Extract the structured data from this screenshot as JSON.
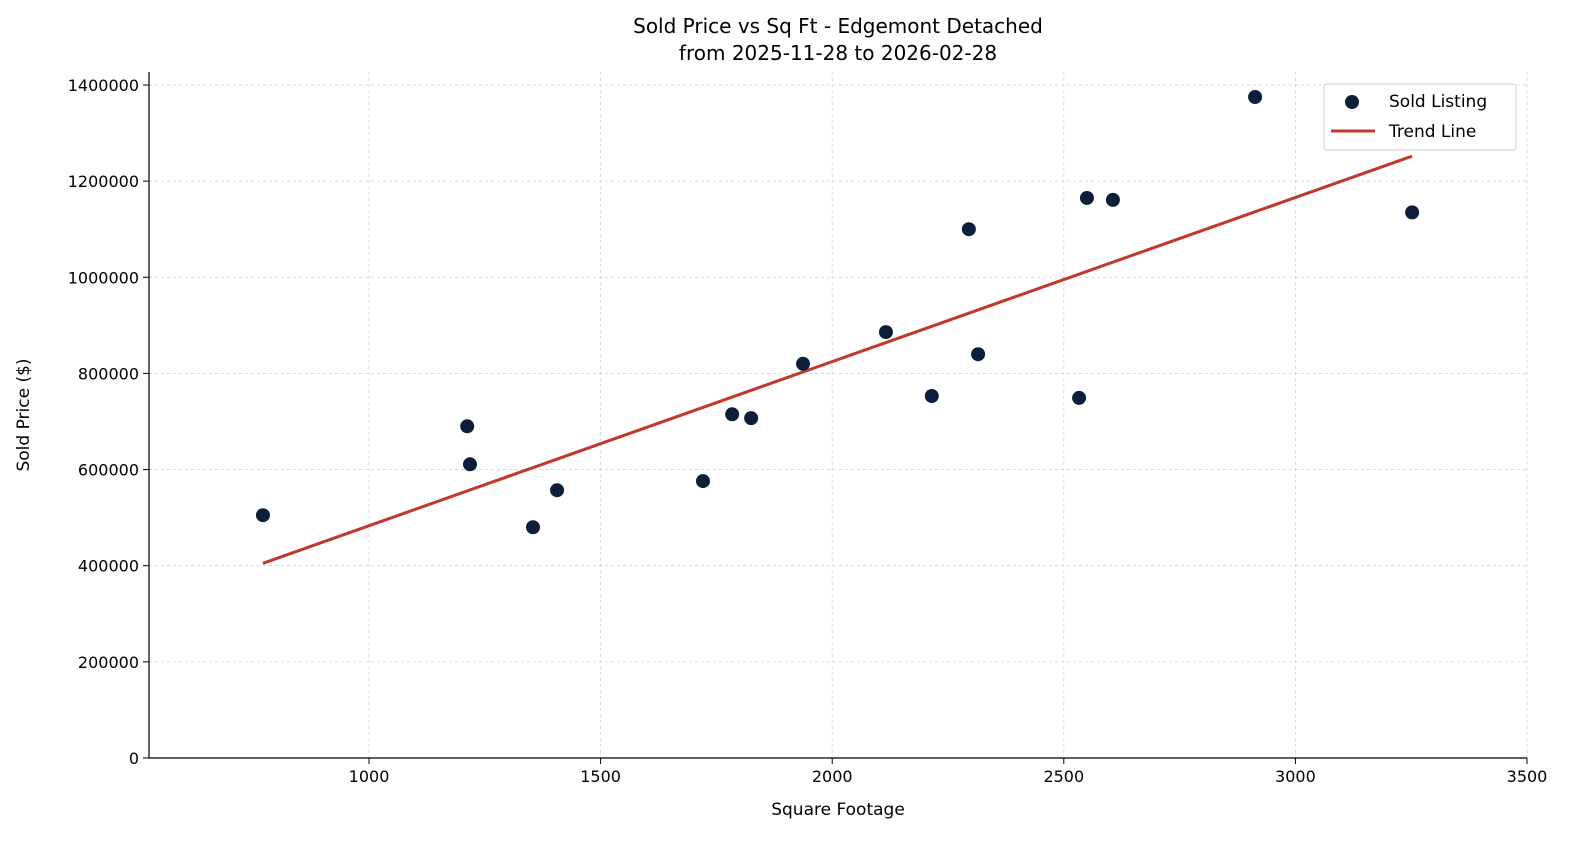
{
  "chart_data": {
    "type": "scatter",
    "title": "Sold Price vs Sq Ft - Edgemont Detached",
    "subtitle": "from 2025-11-28 to 2026-02-28",
    "xlabel": "Square Footage",
    "ylabel": "Sold Price ($)",
    "xlim": [
      525,
      3500
    ],
    "ylim": [
      0,
      1427000
    ],
    "xticks": [
      1000,
      1500,
      2000,
      2500,
      3000,
      3500
    ],
    "yticks": [
      0,
      200000,
      400000,
      600000,
      800000,
      1000000,
      1200000,
      1400000
    ],
    "grid": true,
    "legend_position": "top-right",
    "series": [
      {
        "name": "Sold Listing",
        "kind": "scatter",
        "color": "#0b1f3a",
        "points": [
          [
            771,
            505000
          ],
          [
            1212,
            690000
          ],
          [
            1218,
            611000
          ],
          [
            1354,
            480000
          ],
          [
            1406,
            557000
          ],
          [
            1721,
            576000
          ],
          [
            1784,
            715000
          ],
          [
            1825,
            707000
          ],
          [
            1937,
            820000
          ],
          [
            2116,
            886000
          ],
          [
            2215,
            753000
          ],
          [
            2295,
            1100000
          ],
          [
            2315,
            840000
          ],
          [
            2533,
            749000
          ],
          [
            2550,
            1165000
          ],
          [
            2606,
            1161000
          ],
          [
            2913,
            1375000
          ],
          [
            3252,
            1135000
          ]
        ]
      },
      {
        "name": "Trend Line",
        "kind": "line",
        "color": "#c0392b",
        "points": [
          [
            771,
            405000
          ],
          [
            3252,
            1252000
          ]
        ]
      }
    ]
  }
}
